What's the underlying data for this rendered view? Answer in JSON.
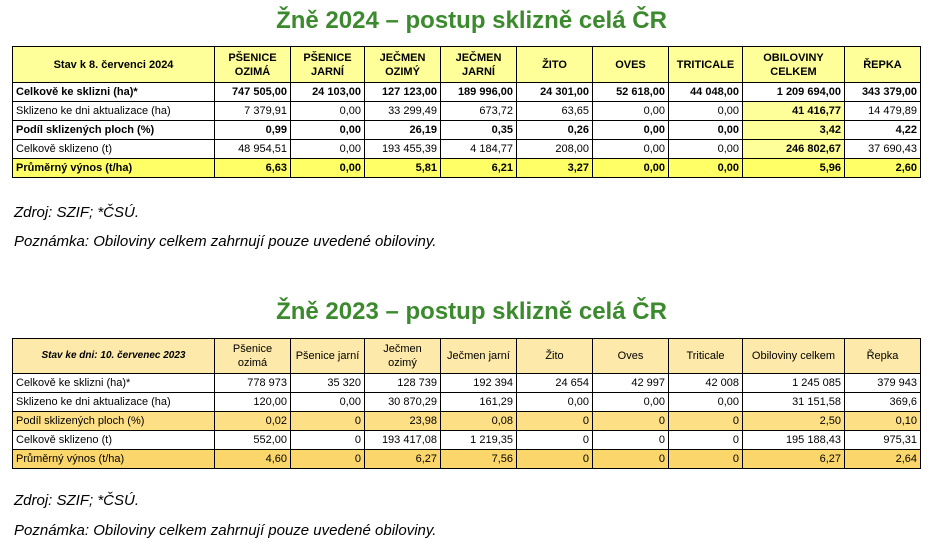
{
  "y2024": {
    "title": "Žně 2024 – postup sklizně celá ČR",
    "header_label": "Stav k 8. červenci 2024",
    "columns": [
      "PŠENICE OZIMÁ",
      "PŠENICE JARNÍ",
      "JEČMEN OZIMÝ",
      "JEČMEN JARNÍ",
      "ŽITO",
      "OVES",
      "TRITICALE",
      "OBILOVINY CELKEM",
      "ŘEPKA"
    ],
    "rows": [
      {
        "label": "Celkově ke sklizni (ha)*",
        "values": [
          "747 505,00",
          "24 103,00",
          "127 123,00",
          "189 996,00",
          "24 301,00",
          "52 618,00",
          "44 048,00",
          "1 209 694,00",
          "343 379,00"
        ]
      },
      {
        "label": "Sklizeno ke dni aktualizace (ha)",
        "values": [
          "7 379,91",
          "0,00",
          "33 299,49",
          "673,72",
          "63,65",
          "0,00",
          "0,00",
          "41 416,77",
          "14 479,89"
        ]
      },
      {
        "label": "Podíl sklizených ploch (%)",
        "values": [
          "0,99",
          "0,00",
          "26,19",
          "0,35",
          "0,26",
          "0,00",
          "0,00",
          "3,42",
          "4,22"
        ]
      },
      {
        "label": "Celkově sklizeno (t)",
        "values": [
          "48 954,51",
          "0,00",
          "193 455,39",
          "4 184,77",
          "208,00",
          "0,00",
          "0,00",
          "246 802,67",
          "37 690,43"
        ]
      },
      {
        "label": "Průměrný výnos (t/ha)",
        "values": [
          "6,63",
          "0,00",
          "5,81",
          "6,21",
          "3,27",
          "0,00",
          "0,00",
          "5,96",
          "2,60"
        ]
      }
    ],
    "source": "Zdroj: SZIF; *ČSÚ.",
    "note": "Poznámka: Obiloviny celkem zahrnují pouze uvedené obiloviny."
  },
  "y2023": {
    "title": "Žně 2023 – postup sklizně celá ČR",
    "header_label": "Stav ke dni: 10. červenec 2023",
    "columns": [
      "Pšenice ozimá",
      "Pšenice jarní",
      "Ječmen ozimý",
      "Ječmen jarní",
      "Žito",
      "Oves",
      "Triticale",
      "Obiloviny celkem",
      "Řepka"
    ],
    "rows": [
      {
        "label": "Celkově ke sklizni (ha)*",
        "values": [
          "778 973",
          "35 320",
          "128 739",
          "192 394",
          "24 654",
          "42 997",
          "42 008",
          "1 245 085",
          "379 943"
        ]
      },
      {
        "label": "Sklizeno ke dni aktualizace (ha)",
        "values": [
          "120,00",
          "0,00",
          "30 870,29",
          "161,29",
          "0,00",
          "0,00",
          "0,00",
          "31 151,58",
          "369,6"
        ]
      },
      {
        "label": "Podíl sklizených ploch (%)",
        "values": [
          "0,02",
          "0",
          "23,98",
          "0,08",
          "0",
          "0",
          "0",
          "2,50",
          "0,10"
        ]
      },
      {
        "label": "Celkově sklizeno (t)",
        "values": [
          "552,00",
          "0",
          "193 417,08",
          "1 219,35",
          "0",
          "0",
          "0",
          "195 188,43",
          "975,31"
        ]
      },
      {
        "label": "Průměrný výnos (t/ha)",
        "values": [
          "4,60",
          "0",
          "6,27",
          "7,56",
          "0",
          "0",
          "0",
          "6,27",
          "2,64"
        ]
      }
    ],
    "source": "Zdroj: SZIF; *ČSÚ.",
    "note": "Poznámka: Obiloviny celkem zahrnují pouze uvedené obiloviny."
  }
}
